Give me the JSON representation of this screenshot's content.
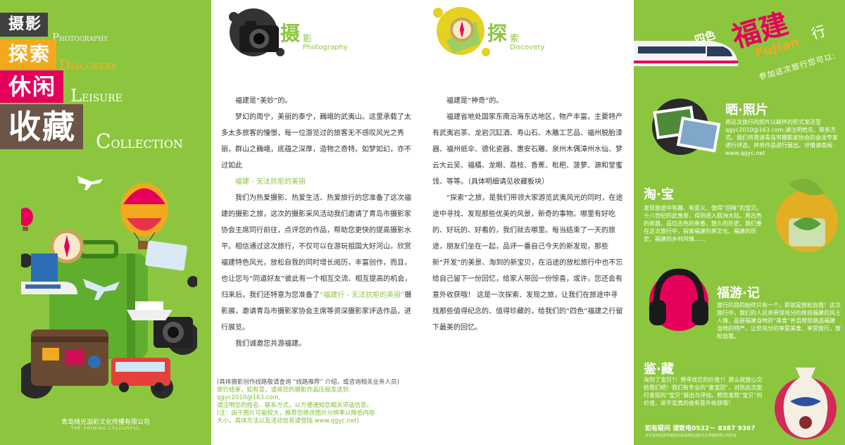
{
  "left": {
    "categories": [
      {
        "zh": "摄影",
        "en_initial": "P",
        "en_rest": "HOTOGRAPHY"
      },
      {
        "zh": "探索",
        "en_initial": "D",
        "en_rest": "ISCOVERY"
      },
      {
        "zh": "休闲",
        "en_initial": "L",
        "en_rest": "EISURE"
      },
      {
        "zh": "收藏",
        "en_initial": "C",
        "en_rest": "OLLECTION"
      }
    ],
    "company_zh": "青岛绮光溢彩文化传播有限公司",
    "company_en": "THE SHINING COLOURFUL"
  },
  "mid1": {
    "head_zh1": "摄",
    "head_zh2": "影",
    "head_en": "Photography",
    "paragraphs": [
      "福建是“美妙”的。",
      "梦幻的周宁，美丽的泰宁，巍峨的武夷山。这里承载了太多太多旅客的憧憬，每一位游览过的旅客无不感叹风光之秀丽，群山之巍峨，底蕴之深厚，造物之奇特。如梦如幻，亦不过如此",
      "福建 - 无法抗拒的美丽",
      "我们为热爱摄影、热爱生活、热爱旅行的您准备了这次福建的摄影之旅，这次的摄影采风活动我们邀请了青岛市摄影家协会主席同行前往，点评您的作品，帮助您更快的提高摄影水平。相信通过这次旅行，不仅可以在游玩祖国大好河山，欣赏福建特色风光，放松自我的同时增长阅历，丰富创作，而且，也让您与“同道好友”彼此有一个相互交流、相互提高的机会，归来后，我们还特意为您准备了",
      "“福建行 - 无法抗拒的美丽”",
      "摄影展，邀请青岛市摄影家协会主席等资深摄影家评选作品，进行展览。",
      "我们诚邀您共游福建。"
    ],
    "footnote_grey": "(具体摄影创作线路敬请查询 “线路推荐” 介绍，或咨询相关业务人员)",
    "footnote_green": [
      "旅行结束，如有意，请将您的摄影作品压缩发送到:",
      "qgyc2010@163.com,",
      "请注明您的姓名、联系方式，以方便通知您相关评选信息。",
      "(注：由于图片可能较大，推荐您修改图片分辨率以降低内存",
      "大小，具体方法以及活动信息请登陆 www.qgyc.net)"
    ]
  },
  "mid2": {
    "head_zh1": "探",
    "head_zh2": "索",
    "head_en": "Discovery",
    "paragraphs": [
      "福建是“神奇”的。",
      "福建省地处国家东南沿海东达地区，物产丰富，主要特产有武夷岩茶、龙岩沉缸酒、寿山石、木雕工艺品、福州脱胎漆器、福州纸伞、德化瓷器、惠安石雕、泉州木偶漳州水仙、梦云大云吴、福橘、龙眼、荔枝、香蕉、枇杷、菠萝、源和堂蜜饯、等等。（具体明细请见收藏板块）",
      "“探索”之旅，是我们带领大家游览武夷风光的同时，在途途中寻找、发现那些优美的风景，新奇的事物。哪里有好吃的、好玩的、好看的，我们就去哪里。每当结束了一天的旅途，朋友们坐在一起，品评一番自己今天的新发现，那些新“开发”的美景、淘到的新宝贝，在沿途的放松旅行中也不忘给自己留下一份回忆，给家人带回一份惊喜，或许，您还会有意外收获哦！ 这是一次探索、发现之旅，让我们在旅途中寻找那些值得纪念的、值得珍藏的，给我们的“四色”福建之行留下最美的回忆。"
    ]
  },
  "right": {
    "four_color": "四色",
    "title_zh": "福建",
    "xing": "行",
    "pinyin": "FuJian",
    "subtitle": "参加这次旅行您可以:",
    "sections": [
      {
        "title": "晒·照片",
        "text": "将这次旅行的照片以邮件的形式发送至qgyc2010@163.com,请注明姓名、联系方式。我们将邀请青岛市摄影家协会的会派专家进行评选，并将作品进行展出。详情请查阅 - www.qgyc.net"
      },
      {
        "title": "淘·宝",
        "text": "发现旅途中有趣、有意义、值得“回味”的宝贝。十八世纪的武夷茶，得到进入欧洲大陆。用古色的瓷器，品位古色的茶香，悠久的历史。我们要在这次旅行中，探索福建的茶文化、福建的历史、福建的乡村风情……"
      },
      {
        "title": "福游·记",
        "text": "旅行的目的始终只有一个，那就是放松自我！这次旅行中，我们的人员将带领充分的体验福建的风土人情，品尝福建当地的“美食”并且帮您挑选福建当地的特产，让您充分的享受美食、享受旅行，放松自我。"
      },
      {
        "title": "鉴·藏",
        "text": "淘到了宝贝?！想寻找它的价值?！那么就放心交给我们吧！我们有专业的“鉴宝团”，对您此次旅行发现的“宝贝”展出与评估。帮您发现“宝贝”的价值，说不定真的会有意外收获哦！"
      }
    ],
    "contact": "如有疑问 请致电0532－ 8387 9367",
    "copyright": "本页宣传的素材版权归青岛绮光溢彩文化传播有限公司所有"
  },
  "colors": {
    "green": "#8cc63f",
    "pink": "#e6005c",
    "orange": "#f2a91e",
    "brown": "#6b5548",
    "dark": "#404040"
  }
}
